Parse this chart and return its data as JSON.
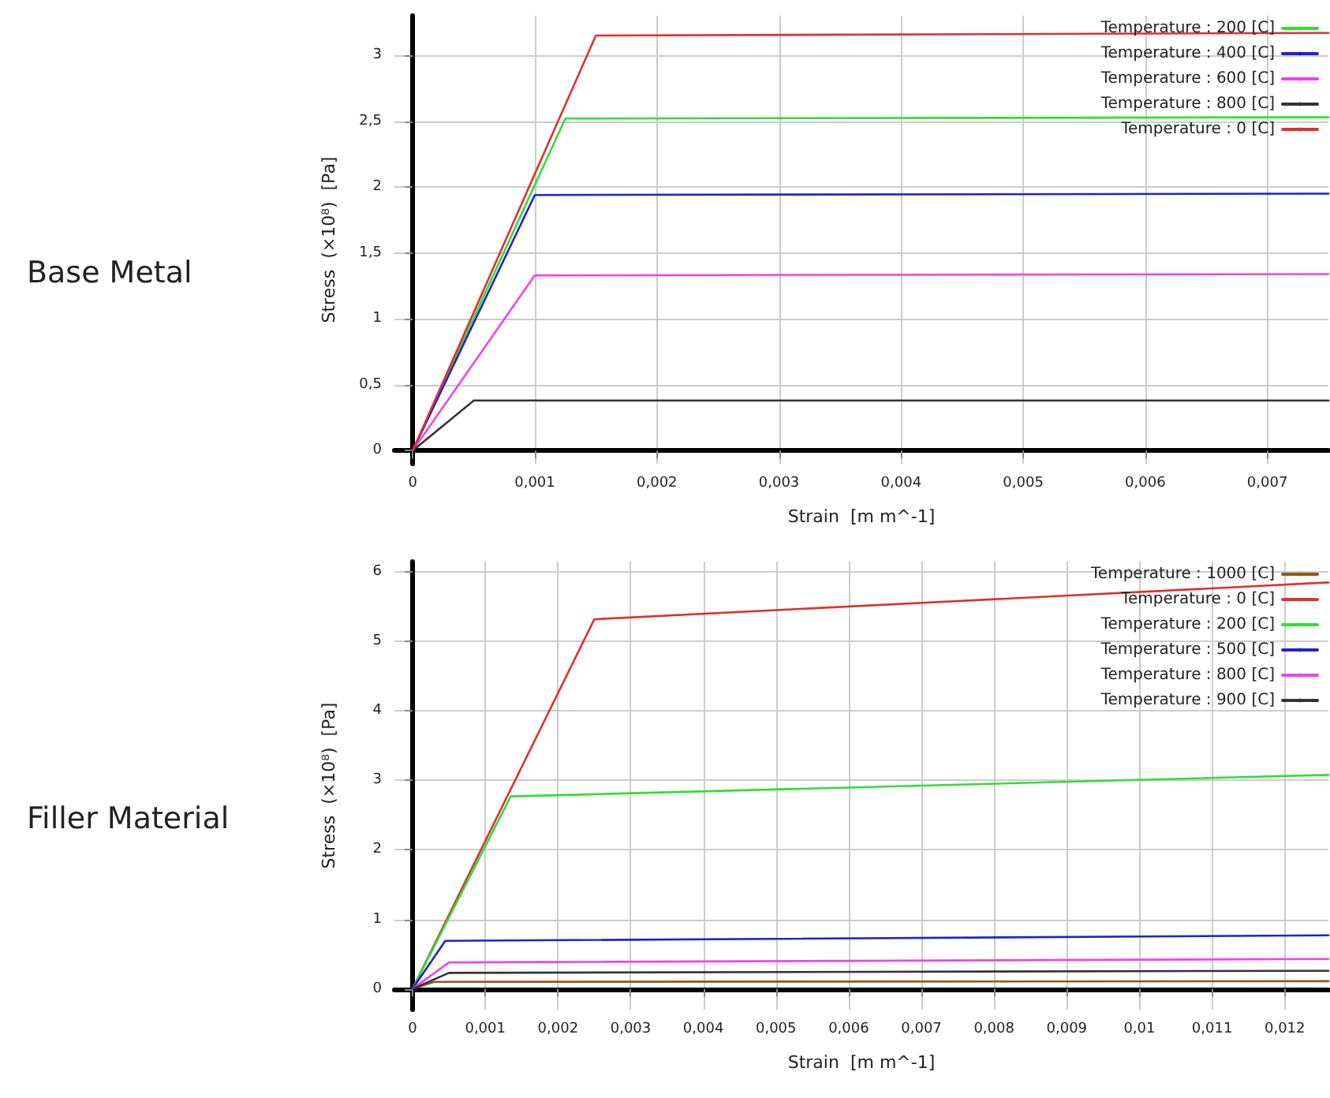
{
  "chart_data": [
    {
      "type": "line",
      "title": "Base Metal",
      "xlabel": "Strain  [m m^-1]",
      "ylabel": "Stress  (×10⁸)  [Pa]",
      "xlim": [
        -0.00015,
        0.0075
      ],
      "ylim": [
        -0.1,
        3.3
      ],
      "xticks": [
        0,
        {
          "value": 0.001,
          "label": "0,001"
        },
        {
          "value": 0.002,
          "label": "0,002"
        },
        {
          "value": 0.003,
          "label": "0,003"
        },
        {
          "value": 0.004,
          "label": "0,004"
        },
        {
          "value": 0.005,
          "label": "0,005"
        },
        {
          "value": 0.006,
          "label": "0,006"
        },
        {
          "value": 0.007,
          "label": "0,007"
        }
      ],
      "yticks": [
        0,
        {
          "value": 0.5,
          "label": "0,5"
        },
        1,
        {
          "value": 1.5,
          "label": "1,5"
        },
        2,
        {
          "value": 2.5,
          "label": "2,5"
        },
        3
      ],
      "grid": true,
      "legend": "top right",
      "marker": "none",
      "line_style": "solid",
      "series": [
        {
          "name": "Temperature : 200 [C]",
          "color": "#33dd33",
          "x": [
            0,
            0.00125,
            0.0075
          ],
          "values": [
            0,
            2.52,
            2.53
          ]
        },
        {
          "name": "Temperature : 400 [C]",
          "color": "#2222cc",
          "x": [
            0,
            0.001,
            0.0075
          ],
          "values": [
            0,
            1.94,
            1.95
          ]
        },
        {
          "name": "Temperature : 600 [C]",
          "color": "#ee44ee",
          "x": [
            0,
            0.001,
            0.0075
          ],
          "values": [
            0,
            1.33,
            1.34
          ]
        },
        {
          "name": "Temperature : 800 [C]",
          "color": "#333333",
          "x": [
            0,
            0.0005,
            0.0075
          ],
          "values": [
            0,
            0.38,
            0.38
          ]
        },
        {
          "name": "Temperature : 0 [C]",
          "color": "#e03030",
          "x": [
            0,
            0.0015,
            0.0075
          ],
          "values": [
            0,
            3.15,
            3.17
          ]
        }
      ]
    },
    {
      "type": "line",
      "title": "Filler Material",
      "xlabel": "Strain  [m m^-1]",
      "ylabel": "Stress  (×10⁸)  [Pa]",
      "xlim": [
        -0.00025,
        0.0126
      ],
      "ylim": [
        -0.3,
        6.15
      ],
      "xticks": [
        0,
        {
          "value": 0.001,
          "label": "0,001"
        },
        {
          "value": 0.002,
          "label": "0,002"
        },
        {
          "value": 0.003,
          "label": "0,003"
        },
        {
          "value": 0.004,
          "label": "0,004"
        },
        {
          "value": 0.005,
          "label": "0,005"
        },
        {
          "value": 0.006,
          "label": "0,006"
        },
        {
          "value": 0.007,
          "label": "0,007"
        },
        {
          "value": 0.008,
          "label": "0,008"
        },
        {
          "value": 0.009,
          "label": "0,009"
        },
        {
          "value": 0.01,
          "label": "0,01"
        },
        {
          "value": 0.011,
          "label": "0,011"
        },
        {
          "value": 0.012,
          "label": "0,012"
        }
      ],
      "yticks": [
        0,
        1,
        2,
        3,
        4,
        5,
        6
      ],
      "grid": true,
      "legend": "top right",
      "marker": "none",
      "line_style": "solid",
      "series": [
        {
          "name": "Temperature : 1000 [C]",
          "color": "#8b5a1a",
          "x": [
            0,
            0.0003,
            0.0126
          ],
          "values": [
            0,
            0.1,
            0.11
          ]
        },
        {
          "name": "Temperature : 0 [C]",
          "color": "#e03030",
          "x": [
            0,
            0.0025,
            0.0126
          ],
          "values": [
            0,
            5.32,
            5.85
          ]
        },
        {
          "name": "Temperature : 200 [C]",
          "color": "#33dd33",
          "x": [
            0,
            0.00135,
            0.0126
          ],
          "values": [
            0,
            2.77,
            3.08
          ]
        },
        {
          "name": "Temperature : 500 [C]",
          "color": "#2222cc",
          "x": [
            0,
            0.00045,
            0.0126
          ],
          "values": [
            0,
            0.69,
            0.77
          ]
        },
        {
          "name": "Temperature : 800 [C]",
          "color": "#ee44ee",
          "x": [
            0,
            0.0005,
            0.0126
          ],
          "values": [
            0,
            0.38,
            0.43
          ]
        },
        {
          "name": "Temperature : 900 [C]",
          "color": "#333333",
          "x": [
            0,
            0.0005,
            0.0126
          ],
          "values": [
            0,
            0.23,
            0.26
          ]
        }
      ]
    }
  ]
}
